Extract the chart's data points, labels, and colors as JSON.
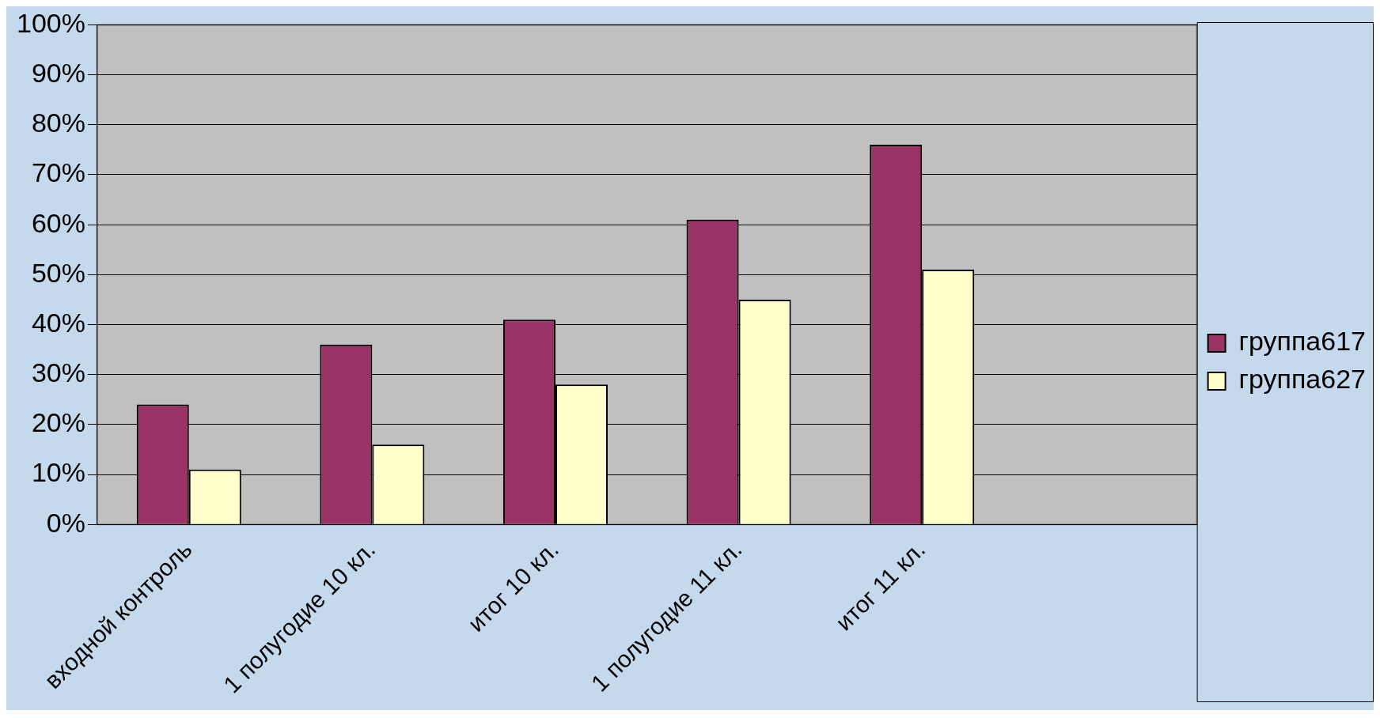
{
  "chart_data": {
    "type": "bar",
    "categories": [
      "входной контроль",
      "1 полугодие 10 кл.",
      "итог 10 кл.",
      "1 полугодие 11 кл.",
      "итог 11 кл.",
      null
    ],
    "series": [
      {
        "name": "группа617",
        "color": "#993366",
        "values": [
          24,
          36,
          41,
          61,
          76,
          null
        ]
      },
      {
        "name": "группа627",
        "color": "#ffffcc",
        "values": [
          11,
          16,
          28,
          45,
          51,
          null
        ]
      }
    ],
    "ylim": [
      0,
      100
    ],
    "yticks": [
      {
        "value": 0,
        "label": "0%"
      },
      {
        "value": 10,
        "label": "10%"
      },
      {
        "value": 20,
        "label": "20%"
      },
      {
        "value": 30,
        "label": "30%"
      },
      {
        "value": 40,
        "label": "40%"
      },
      {
        "value": 50,
        "label": "50%"
      },
      {
        "value": 60,
        "label": "60%"
      },
      {
        "value": 70,
        "label": "70%"
      },
      {
        "value": 80,
        "label": "80%"
      },
      {
        "value": 90,
        "label": "90%"
      },
      {
        "value": 100,
        "label": "100%"
      }
    ],
    "grid": "y",
    "legend": "right"
  }
}
